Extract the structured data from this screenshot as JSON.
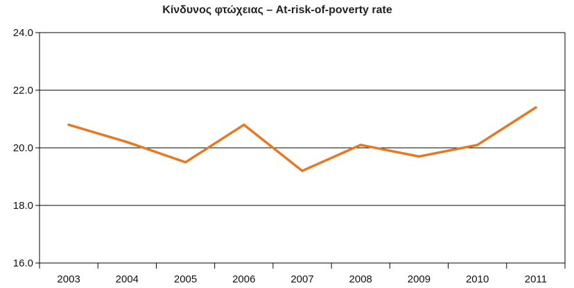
{
  "chart_data": {
    "type": "line",
    "title": "Κίνδυνος φτώχειας – At-risk-of-poverty rate",
    "xlabel": "",
    "ylabel": "",
    "categories": [
      "2003",
      "2004",
      "2005",
      "2006",
      "2007",
      "2008",
      "2009",
      "2010",
      "2011"
    ],
    "series": [
      {
        "values": [
          20.8,
          20.2,
          19.5,
          20.8,
          19.2,
          20.1,
          19.7,
          20.1,
          21.4
        ]
      }
    ],
    "ylim": [
      16.0,
      24.0
    ],
    "yticks": [
      "16.0",
      "18.0",
      "20.0",
      "22.0",
      "24.0"
    ],
    "grid": "horizontal",
    "colors": {
      "line": "#E87722",
      "grid": "#000000",
      "axis": "#000000"
    }
  }
}
